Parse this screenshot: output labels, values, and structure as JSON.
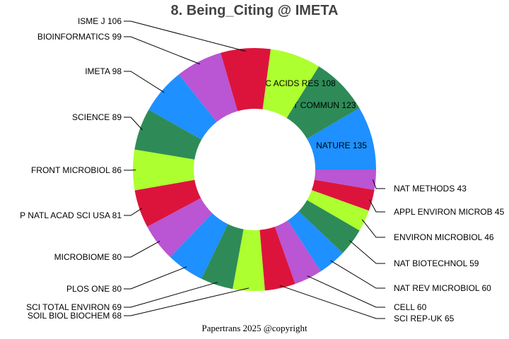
{
  "chart_data": {
    "type": "pie",
    "variant": "donut",
    "title": "8. Being_Citing @ IMETA",
    "footer": "Papertrans 2025 @copyright",
    "direction": "counterclockwise from east",
    "slices": [
      {
        "label": "NATURE",
        "value": 135,
        "color": "#1E90FF"
      },
      {
        "label": "NAT COMMUN",
        "value": 123,
        "color": "#2E8B57"
      },
      {
        "label": "NUCLEIC ACIDS RES",
        "value": 108,
        "color": "#ADFF2F"
      },
      {
        "label": "ISME J",
        "value": 106,
        "color": "#DC143C"
      },
      {
        "label": "BIOINFORMATICS",
        "value": 99,
        "color": "#BA55D3"
      },
      {
        "label": "IMETA",
        "value": 98,
        "color": "#1E90FF"
      },
      {
        "label": "SCIENCE",
        "value": 89,
        "color": "#2E8B57"
      },
      {
        "label": "FRONT MICROBIOL",
        "value": 86,
        "color": "#ADFF2F"
      },
      {
        "label": "P NATL ACAD SCI USA",
        "value": 81,
        "color": "#DC143C"
      },
      {
        "label": "MICROBIOME",
        "value": 80,
        "color": "#BA55D3"
      },
      {
        "label": "PLOS ONE",
        "value": 80,
        "color": "#1E90FF"
      },
      {
        "label": "SCI TOTAL ENVIRON",
        "value": 69,
        "color": "#2E8B57"
      },
      {
        "label": "SOIL BIOL BIOCHEM",
        "value": 68,
        "color": "#ADFF2F"
      },
      {
        "label": "SCI REP-UK",
        "value": 65,
        "color": "#DC143C"
      },
      {
        "label": "CELL",
        "value": 60,
        "color": "#BA55D3"
      },
      {
        "label": "NAT REV MICROBIOL",
        "value": 60,
        "color": "#1E90FF"
      },
      {
        "label": "NAT BIOTECHNOL",
        "value": 59,
        "color": "#2E8B57"
      },
      {
        "label": "ENVIRON MICROBIOL",
        "value": 46,
        "color": "#ADFF2F"
      },
      {
        "label": "APPL ENVIRON MICROB",
        "value": 45,
        "color": "#DC143C"
      },
      {
        "label": "NAT METHODS",
        "value": 43,
        "color": "#BA55D3"
      }
    ]
  }
}
